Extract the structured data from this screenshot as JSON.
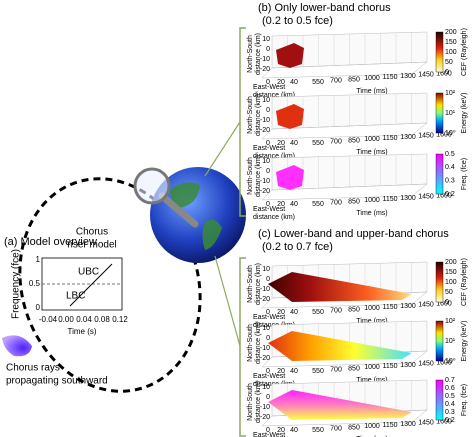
{
  "panel_a": {
    "title": "(a) Model overview",
    "model_label": [
      "Chorus",
      "riser model"
    ],
    "inset": {
      "y_label": "Frequency (fce)",
      "y_ticks": [
        "1",
        "0.5",
        "0"
      ],
      "x_label": "Time (s)",
      "x_ticks": [
        "-0.04",
        "0.00",
        "0.04",
        "0.08",
        "0.12"
      ],
      "upper_label": "UBC",
      "lower_label": "LBC"
    },
    "rays_label": [
      "Chorus rays",
      "propagating southward"
    ]
  },
  "panel_b": {
    "title": [
      "(b) Only lower-band chorus",
      "(0.2 to 0.5 fce)"
    ],
    "colorbars": [
      {
        "label": "CEF (Rayleigh)",
        "ticks": [
          "200",
          "150",
          "100",
          "50",
          "0"
        ]
      },
      {
        "label": "Energy (keV)",
        "ticks": [
          "10²",
          "10¹",
          "10⁰"
        ]
      },
      {
        "label": "Freq. (fce)",
        "ticks": [
          "0.5",
          "0.4",
          "0.3",
          "0.2"
        ]
      }
    ]
  },
  "panel_c": {
    "title": [
      "(c) Lower-band and upper-band chorus",
      "(0.2 to 0.7 fce)"
    ],
    "colorbars": [
      {
        "label": "CEF (Rayleigh)",
        "ticks": [
          "200",
          "150",
          "100",
          "50",
          "0"
        ]
      },
      {
        "label": "Energy (keV)",
        "ticks": [
          "10²",
          "10¹",
          "10⁰"
        ]
      },
      {
        "label": "Freq. (fce)",
        "ticks": [
          "0.7",
          "0.6",
          "0.5",
          "0.4",
          "0.3",
          "0.2"
        ]
      }
    ]
  },
  "subplot_axes": {
    "y_label": [
      "North-South",
      "distance (km)"
    ],
    "y_ticks": [
      "10",
      "0",
      "-10",
      "-20"
    ],
    "x_label": [
      "East-West",
      "distance (km)"
    ],
    "x_ticks": [
      "0",
      "20",
      "40"
    ],
    "time_label": "Time (ms)",
    "time_ticks": [
      "550",
      "700",
      "850",
      "1000",
      "1150",
      "1300",
      "1450",
      "1600"
    ]
  }
}
